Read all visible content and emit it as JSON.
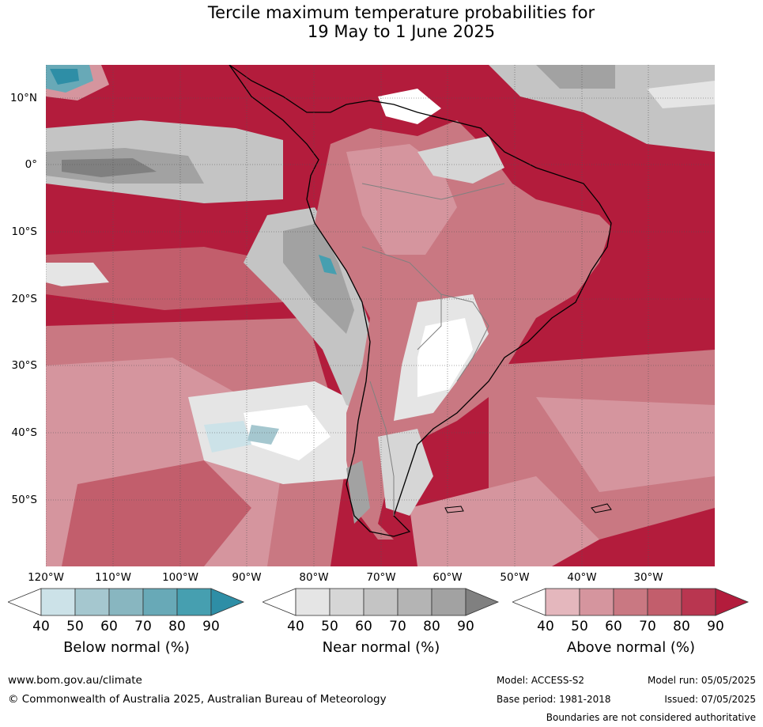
{
  "title_line1": "Tercile maximum temperature probabilities for",
  "title_line2": "19 May to 1 June 2025",
  "lat_labels": [
    "10°N",
    "0°",
    "10°S",
    "20°S",
    "30°S",
    "40°S",
    "50°S"
  ],
  "lon_labels": [
    "120°W",
    "110°W",
    "100°W",
    "90°W",
    "80°W",
    "70°W",
    "60°W",
    "50°W",
    "40°W",
    "30°W"
  ],
  "legends": {
    "below": {
      "caption": "Below normal (%)",
      "ticks": [
        "40",
        "50",
        "60",
        "70",
        "80",
        "90"
      ],
      "colors": [
        "#ffffff",
        "#cce2e8",
        "#a5c7cf",
        "#88b6c0",
        "#68a9b7",
        "#469fb0",
        "#2e8ea6"
      ]
    },
    "near": {
      "caption": "Near normal (%)",
      "ticks": [
        "40",
        "50",
        "60",
        "70",
        "80",
        "90"
      ],
      "colors": [
        "#ffffff",
        "#e5e5e5",
        "#d6d6d6",
        "#c4c4c4",
        "#b4b4b4",
        "#a2a2a2",
        "#808080"
      ]
    },
    "above": {
      "caption": "Above normal (%)",
      "ticks": [
        "40",
        "50",
        "60",
        "70",
        "80",
        "90"
      ],
      "colors": [
        "#ffffff",
        "#e4b7bd",
        "#d5959e",
        "#c97882",
        "#c25e6c",
        "#b93650",
        "#b31c3c"
      ]
    }
  },
  "footer": {
    "website": "www.bom.gov.au/climate",
    "copyright": "© Commonwealth of Australia 2025, Australian Bureau of Meteorology",
    "model": "Model: ACCESS-S2",
    "model_run": "Model run: 05/05/2025",
    "base_period": "Base period: 1981-2018",
    "issued": "Issued: 07/05/2025",
    "disclaimer": "Boundaries are not considered authoritative"
  },
  "colors": {
    "dominant_above": "#b31c3c",
    "grid_line": "#555555",
    "coastline": "#000000",
    "borders": "#808080"
  }
}
